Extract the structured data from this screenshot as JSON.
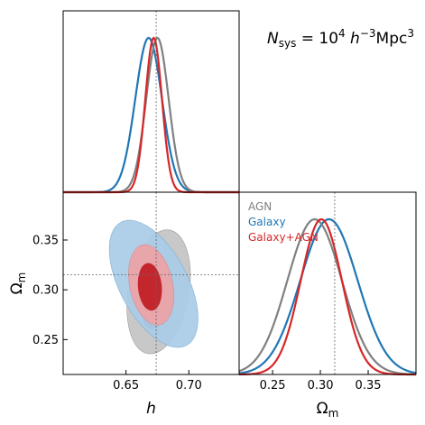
{
  "chart_data": {
    "type": "corner",
    "annotation": {
      "parts": [
        "N",
        "sys",
        " = 10",
        "4",
        " h",
        "−3",
        "Mpc",
        "3"
      ]
    },
    "axes": {
      "h": {
        "label": "h",
        "range": [
          0.6,
          0.74
        ],
        "ticks": [
          0.65,
          0.7
        ],
        "tick_labels": [
          "0.65",
          "0.70"
        ],
        "truth": 0.674
      },
      "omega_m": {
        "label_main": "Ω",
        "label_sub": "m",
        "range": [
          0.215,
          0.398
        ],
        "ticks": [
          0.25,
          0.3,
          0.35
        ],
        "tick_labels": [
          "0.25",
          "0.30",
          "0.35"
        ],
        "truth": 0.315,
        "diag_range": [
          0.215,
          0.4
        ],
        "diag_ticks": [
          0.25,
          0.3,
          0.35
        ],
        "diag_tick_labels": [
          "0.25",
          "0.30",
          "0.35"
        ]
      }
    },
    "legend": {
      "placement": "upper-left of Ω_m panel",
      "entries": [
        {
          "label": "AGN",
          "color": "#808080"
        },
        {
          "label": "Galaxy",
          "color": "#1f77b4"
        },
        {
          "label": "Galaxy+AGN",
          "color": "#d62728"
        }
      ]
    },
    "series": [
      {
        "name": "AGN",
        "color": "#808080",
        "h_mean": 0.675,
        "h_sigma": 0.0089,
        "om_mean": 0.294,
        "om_sigma": 0.0285,
        "contour_1sigma": {
          "h_center": 0.675,
          "om_center": 0.292,
          "h_half_width": 0.012,
          "om_half_height": 0.032,
          "tilt_deg": 12
        },
        "contour_2sigma": {
          "h_center": 0.676,
          "om_center": 0.298,
          "h_half_width": 0.024,
          "om_half_height": 0.063,
          "tilt_deg": 10
        },
        "fill_1sigma": "#6e6e6e",
        "fill_2sigma": "#c8c8c8"
      },
      {
        "name": "Galaxy",
        "color": "#1f77b4",
        "h_mean": 0.668,
        "h_sigma": 0.0106,
        "om_mean": 0.309,
        "om_sigma": 0.03,
        "contour_1sigma": {
          "h_center": 0.668,
          "om_center": 0.303,
          "h_half_width": 0.011,
          "om_half_height": 0.036,
          "tilt_deg": -8
        },
        "contour_2sigma": {
          "h_center": 0.672,
          "om_center": 0.306,
          "h_half_width": 0.027,
          "om_half_height": 0.07,
          "tilt_deg": -28
        },
        "fill_1sigma": "#2e7ab8",
        "fill_2sigma": "#a9cbe6"
      },
      {
        "name": "Galaxy+AGN",
        "color": "#d62728",
        "h_mean": 0.672,
        "h_sigma": 0.0066,
        "om_mean": 0.301,
        "om_sigma": 0.0215,
        "contour_1sigma": {
          "h_center": 0.669,
          "om_center": 0.303,
          "h_half_width": 0.0095,
          "om_half_height": 0.024,
          "tilt_deg": -5
        },
        "contour_2sigma": {
          "h_center": 0.67,
          "om_center": 0.305,
          "h_half_width": 0.017,
          "om_half_height": 0.041,
          "tilt_deg": -12
        },
        "fill_1sigma": "#c4262e",
        "fill_2sigma": "#e8a6ab"
      }
    ]
  }
}
